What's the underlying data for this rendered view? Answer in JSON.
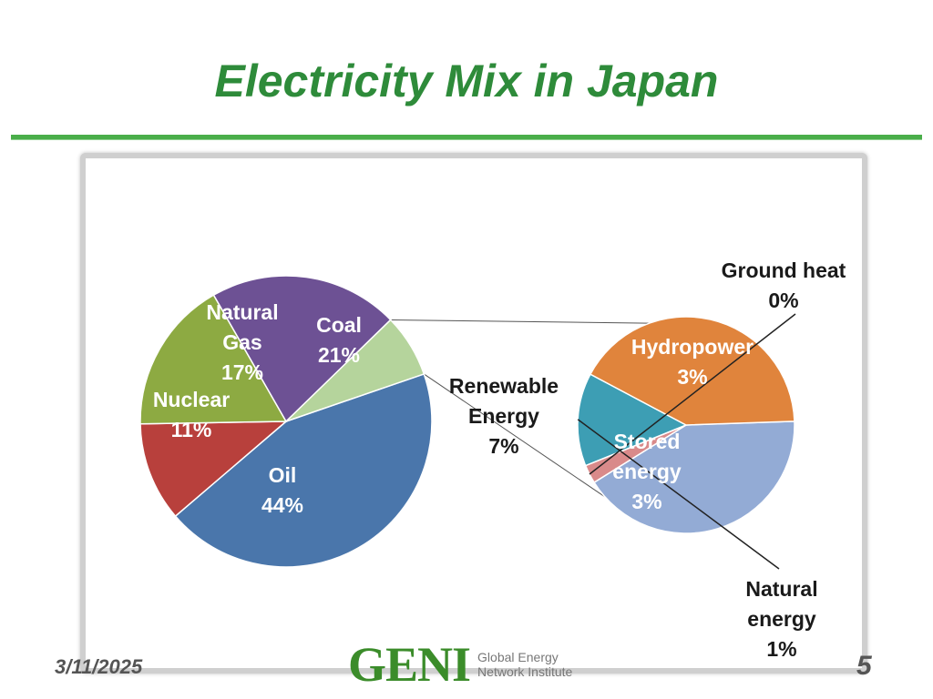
{
  "slide": {
    "title": "Electricity Mix in Japan",
    "date": "3/11/2025",
    "page_number": "5"
  },
  "logo": {
    "mark": "GENI",
    "line1": "Global Energy",
    "line2": "Network Institute",
    "color": "#3b8c2a"
  },
  "chart_data": {
    "type": "pie",
    "subtype": "pie-of-pie",
    "main_pie": {
      "slices": [
        {
          "name": "Oil",
          "value": 44,
          "label": "Oil\n44%",
          "color": "#4a76ab"
        },
        {
          "name": "Nuclear",
          "value": 11,
          "label": "Nuclear\n11%",
          "color": "#b8403c"
        },
        {
          "name": "Natural Gas",
          "value": 17,
          "label": "Natural\nGas\n17%",
          "color": "#8daa42"
        },
        {
          "name": "Coal",
          "value": 21,
          "label": "Coal\n21%",
          "color": "#6d5194"
        },
        {
          "name": "Renewable Energy",
          "value": 7,
          "label": "Renewable\nEnergy\n7%",
          "color": "#b5d49c"
        }
      ]
    },
    "secondary_pie": {
      "breakdown_of": "Renewable Energy",
      "slices": [
        {
          "name": "Hydropower",
          "value": 3,
          "label": "Hydropower\n3%",
          "color": "#93abd5"
        },
        {
          "name": "Ground heat",
          "value": 0.2,
          "label": "Ground heat\n0%",
          "color": "#d98a8a"
        },
        {
          "name": "Natural energy",
          "value": 1,
          "label": "Natural\nenergy\n1%",
          "color": "#3d9eb4"
        },
        {
          "name": "Stored energy",
          "value": 3,
          "label": "Stored\nenergy\n3%",
          "color": "#e0843c"
        }
      ]
    }
  }
}
